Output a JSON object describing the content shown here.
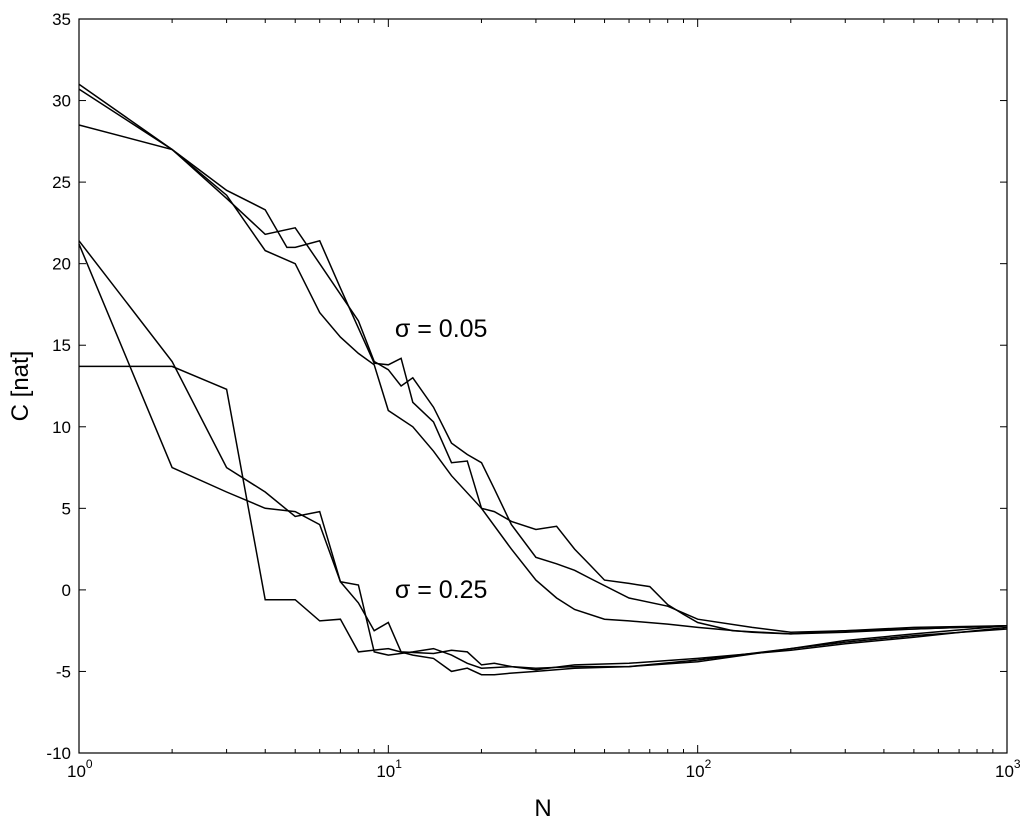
{
  "chart_data": {
    "type": "line",
    "xscale": "log",
    "xlim": [
      1,
      1000
    ],
    "ylim": [
      -10,
      35
    ],
    "xlabel": "N",
    "ylabel": "C [nat]",
    "grid": false,
    "xticks": [
      {
        "value": 1,
        "base": "10",
        "exp": "0"
      },
      {
        "value": 10,
        "base": "10",
        "exp": "1"
      },
      {
        "value": 100,
        "base": "10",
        "exp": "2"
      },
      {
        "value": 1000,
        "base": "10",
        "exp": "3"
      }
    ],
    "yticks": [
      -10,
      -5,
      0,
      5,
      10,
      15,
      20,
      25,
      30,
      35
    ],
    "annotations": [
      {
        "text": "σ = 0.05",
        "x": 10.5,
        "y": 15.5
      },
      {
        "text": "σ = 0.25",
        "x": 10.5,
        "y": -0.5
      }
    ],
    "series": [
      {
        "group": "σ = 0.05",
        "points": [
          [
            1,
            31.0
          ],
          [
            2,
            27.0
          ],
          [
            3,
            24.5
          ],
          [
            4,
            23.3
          ],
          [
            4.7,
            21.0
          ],
          [
            5,
            21.0
          ],
          [
            6,
            21.4
          ],
          [
            7,
            18.5
          ],
          [
            9,
            13.9
          ],
          [
            10,
            13.8
          ],
          [
            11,
            14.2
          ],
          [
            12,
            11.5
          ],
          [
            14,
            10.3
          ],
          [
            16,
            7.8
          ],
          [
            18,
            7.9
          ],
          [
            20,
            5.0
          ],
          [
            22,
            4.8
          ],
          [
            25,
            4.2
          ],
          [
            30,
            3.7
          ],
          [
            35,
            3.9
          ],
          [
            40,
            2.5
          ],
          [
            45,
            1.5
          ],
          [
            50,
            0.6
          ],
          [
            60,
            0.4
          ],
          [
            70,
            0.2
          ],
          [
            80,
            -0.9
          ],
          [
            90,
            -1.5
          ],
          [
            100,
            -2.0
          ],
          [
            130,
            -2.5
          ],
          [
            200,
            -2.7
          ],
          [
            300,
            -2.5
          ],
          [
            500,
            -2.4
          ],
          [
            1000,
            -2.2
          ]
        ]
      },
      {
        "group": "σ = 0.05",
        "points": [
          [
            1,
            30.7
          ],
          [
            2,
            27.0
          ],
          [
            3,
            24.0
          ],
          [
            4,
            21.8
          ],
          [
            5,
            22.2
          ],
          [
            6,
            20.0
          ],
          [
            8,
            16.5
          ],
          [
            9,
            14.0
          ],
          [
            10,
            13.5
          ],
          [
            11,
            12.5
          ],
          [
            12,
            13.0
          ],
          [
            14,
            11.2
          ],
          [
            16,
            9.0
          ],
          [
            18,
            8.3
          ],
          [
            20,
            7.8
          ],
          [
            22,
            6.2
          ],
          [
            25,
            4.0
          ],
          [
            30,
            2.0
          ],
          [
            35,
            1.6
          ],
          [
            40,
            1.2
          ],
          [
            45,
            0.7
          ],
          [
            60,
            -0.5
          ],
          [
            80,
            -1.0
          ],
          [
            100,
            -1.8
          ],
          [
            150,
            -2.3
          ],
          [
            200,
            -2.6
          ],
          [
            300,
            -2.5
          ],
          [
            500,
            -2.3
          ],
          [
            1000,
            -2.2
          ]
        ]
      },
      {
        "group": "σ = 0.05",
        "points": [
          [
            1,
            28.5
          ],
          [
            2,
            27.0
          ],
          [
            3,
            24.2
          ],
          [
            4,
            20.8
          ],
          [
            5,
            20.0
          ],
          [
            6,
            17.0
          ],
          [
            7,
            15.5
          ],
          [
            8,
            14.5
          ],
          [
            9,
            13.8
          ],
          [
            10,
            11.0
          ],
          [
            12,
            10.0
          ],
          [
            14,
            8.5
          ],
          [
            16,
            7.0
          ],
          [
            20,
            5.0
          ],
          [
            25,
            2.5
          ],
          [
            30,
            0.6
          ],
          [
            35,
            -0.5
          ],
          [
            40,
            -1.2
          ],
          [
            50,
            -1.8
          ],
          [
            60,
            -1.9
          ],
          [
            80,
            -2.1
          ],
          [
            100,
            -2.3
          ],
          [
            150,
            -2.6
          ],
          [
            200,
            -2.7
          ],
          [
            300,
            -2.6
          ],
          [
            500,
            -2.4
          ],
          [
            1000,
            -2.2
          ]
        ]
      },
      {
        "group": "σ = 0.25",
        "points": [
          [
            1,
            21.4
          ],
          [
            2,
            14.0
          ],
          [
            3,
            7.5
          ],
          [
            4,
            6.0
          ],
          [
            5,
            4.5
          ],
          [
            6,
            4.8
          ],
          [
            7,
            0.5
          ],
          [
            8,
            -0.8
          ],
          [
            9,
            -2.5
          ],
          [
            10,
            -2.0
          ],
          [
            11,
            -3.8
          ],
          [
            14,
            -3.9
          ],
          [
            16,
            -3.7
          ],
          [
            18,
            -3.8
          ],
          [
            20,
            -4.6
          ],
          [
            22,
            -4.5
          ],
          [
            25,
            -4.7
          ],
          [
            30,
            -4.8
          ],
          [
            40,
            -4.7
          ],
          [
            60,
            -4.7
          ],
          [
            100,
            -4.3
          ],
          [
            200,
            -3.6
          ],
          [
            300,
            -3.2
          ],
          [
            500,
            -2.8
          ],
          [
            1000,
            -2.4
          ]
        ]
      },
      {
        "group": "σ = 0.25",
        "points": [
          [
            1,
            21.2
          ],
          [
            2,
            7.5
          ],
          [
            3,
            6.0
          ],
          [
            4,
            5.0
          ],
          [
            5,
            4.8
          ],
          [
            6,
            4.0
          ],
          [
            7,
            0.5
          ],
          [
            8,
            0.3
          ],
          [
            9,
            -3.8
          ],
          [
            10,
            -4.0
          ],
          [
            12,
            -3.8
          ],
          [
            14,
            -3.6
          ],
          [
            16,
            -4.0
          ],
          [
            18,
            -4.5
          ],
          [
            20,
            -4.8
          ],
          [
            25,
            -4.7
          ],
          [
            30,
            -4.9
          ],
          [
            40,
            -4.6
          ],
          [
            60,
            -4.5
          ],
          [
            100,
            -4.2
          ],
          [
            200,
            -3.7
          ],
          [
            300,
            -3.3
          ],
          [
            500,
            -2.9
          ],
          [
            1000,
            -2.3
          ]
        ]
      },
      {
        "group": "σ = 0.25",
        "points": [
          [
            1,
            13.7
          ],
          [
            2,
            13.7
          ],
          [
            3,
            12.3
          ],
          [
            4,
            -0.6
          ],
          [
            5,
            -0.6
          ],
          [
            6,
            -1.9
          ],
          [
            7,
            -1.8
          ],
          [
            8,
            -3.8
          ],
          [
            10,
            -3.6
          ],
          [
            12,
            -4.0
          ],
          [
            14,
            -4.2
          ],
          [
            16,
            -5.0
          ],
          [
            18,
            -4.8
          ],
          [
            20,
            -5.2
          ],
          [
            22,
            -5.2
          ],
          [
            25,
            -5.1
          ],
          [
            30,
            -5.0
          ],
          [
            40,
            -4.8
          ],
          [
            60,
            -4.7
          ],
          [
            100,
            -4.4
          ],
          [
            200,
            -3.6
          ],
          [
            300,
            -3.1
          ],
          [
            500,
            -2.7
          ],
          [
            1000,
            -2.2
          ]
        ]
      }
    ]
  }
}
